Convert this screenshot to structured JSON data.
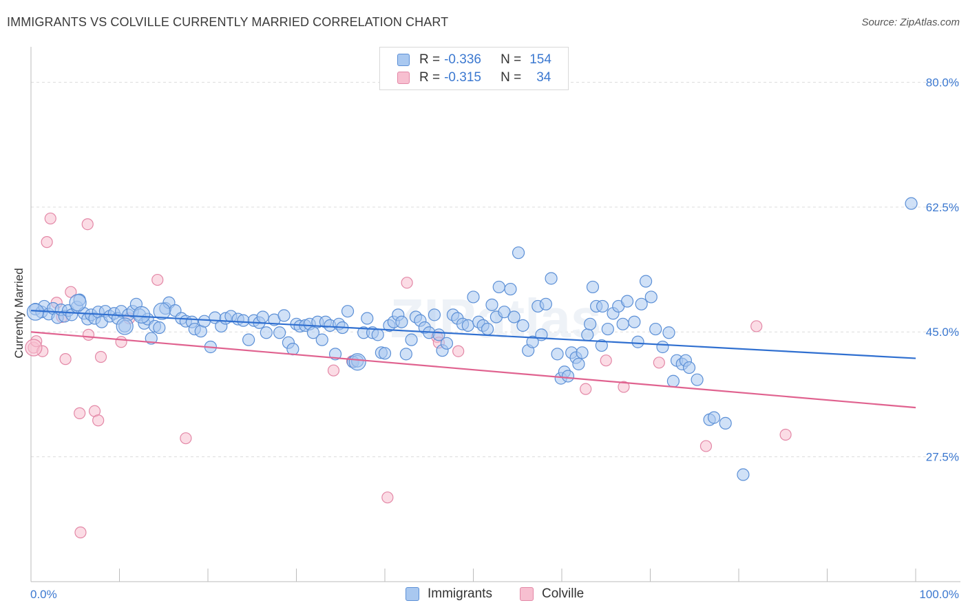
{
  "title": "IMMIGRANTS VS COLVILLE CURRENTLY MARRIED CORRELATION CHART",
  "source": "Source: ZipAtlas.com",
  "watermark": "ZIPatlas",
  "legend_top": {
    "rows": [
      {
        "r_label": "R =",
        "r_value": "-0.336",
        "n_label": "N =",
        "n_value": "154"
      },
      {
        "r_label": "R =",
        "r_value": "-0.315",
        "n_label": "N =",
        "n_value": "34"
      }
    ]
  },
  "legend_bottom": {
    "items": [
      {
        "label": "Immigrants"
      },
      {
        "label": "Colville"
      }
    ]
  },
  "colors": {
    "blue_fill": "#a9c8f0",
    "blue_stroke": "#5b8fd6",
    "blue_line": "#2f6fd0",
    "pink_fill": "#f7bfd0",
    "pink_stroke": "#e387a6",
    "pink_line": "#e0628f",
    "tick_text": "#3b78d0"
  },
  "chart_data": {
    "type": "scatter",
    "ylabel": "Currently Married",
    "xlabel": "",
    "xlim": [
      0,
      100
    ],
    "ylim": [
      10,
      84
    ],
    "x_ticks": [
      "0.0%",
      "100.0%"
    ],
    "y_ticks": [
      {
        "value": 80,
        "label": "80.0%"
      },
      {
        "value": 62.5,
        "label": "62.5%"
      },
      {
        "value": 45,
        "label": "45.0%"
      },
      {
        "value": 27.5,
        "label": "27.5%"
      }
    ],
    "grid": true,
    "series": [
      {
        "name": "Immigrants",
        "trend": {
          "x": [
            0,
            100
          ],
          "y": [
            48.0,
            41.3
          ]
        },
        "points": [
          [
            0.5,
            48.2
          ],
          [
            1.2,
            47.8
          ],
          [
            1.5,
            48.6
          ],
          [
            2.0,
            47.5
          ],
          [
            2.5,
            48.3
          ],
          [
            3.0,
            47.0
          ],
          [
            3.4,
            48.1
          ],
          [
            3.8,
            47.2
          ],
          [
            4.2,
            48.0
          ],
          [
            4.6,
            47.4
          ],
          [
            5.2,
            48.5
          ],
          [
            5.5,
            49.5
          ],
          [
            6.0,
            47.6
          ],
          [
            6.4,
            46.8
          ],
          [
            6.8,
            47.4
          ],
          [
            7.2,
            46.9
          ],
          [
            7.6,
            47.8
          ],
          [
            8.0,
            46.4
          ],
          [
            8.4,
            47.9
          ],
          [
            8.9,
            47.2
          ],
          [
            9.4,
            47.6
          ],
          [
            9.8,
            46.9
          ],
          [
            10.2,
            47.9
          ],
          [
            10.6,
            45.8
          ],
          [
            11.0,
            47.4
          ],
          [
            11.5,
            47.9
          ],
          [
            11.9,
            48.9
          ],
          [
            12.3,
            47.4
          ],
          [
            12.8,
            46.2
          ],
          [
            13.2,
            46.8
          ],
          [
            13.6,
            44.1
          ],
          [
            14.0,
            45.8
          ],
          [
            14.5,
            45.6
          ],
          [
            15.2,
            48.3
          ],
          [
            15.6,
            49.1
          ],
          [
            16.3,
            48.0
          ],
          [
            17.0,
            46.9
          ],
          [
            17.5,
            46.5
          ],
          [
            18.2,
            46.4
          ],
          [
            18.5,
            45.4
          ],
          [
            19.2,
            45.1
          ],
          [
            19.6,
            46.5
          ],
          [
            20.3,
            42.9
          ],
          [
            20.8,
            47.0
          ],
          [
            21.5,
            45.8
          ],
          [
            22.0,
            46.9
          ],
          [
            22.6,
            47.2
          ],
          [
            23.4,
            46.8
          ],
          [
            24.0,
            46.6
          ],
          [
            24.6,
            43.9
          ],
          [
            25.2,
            46.6
          ],
          [
            25.8,
            46.3
          ],
          [
            26.2,
            47.1
          ],
          [
            26.6,
            44.9
          ],
          [
            27.5,
            46.7
          ],
          [
            28.1,
            44.9
          ],
          [
            28.6,
            47.3
          ],
          [
            29.1,
            43.5
          ],
          [
            29.6,
            42.6
          ],
          [
            30.0,
            46.1
          ],
          [
            30.4,
            45.8
          ],
          [
            31.0,
            45.9
          ],
          [
            31.5,
            46.1
          ],
          [
            31.9,
            44.9
          ],
          [
            32.4,
            46.4
          ],
          [
            32.9,
            43.9
          ],
          [
            33.3,
            46.4
          ],
          [
            33.8,
            45.9
          ],
          [
            34.4,
            41.9
          ],
          [
            34.8,
            46.1
          ],
          [
            35.2,
            45.6
          ],
          [
            35.8,
            47.9
          ],
          [
            36.4,
            40.8
          ],
          [
            36.9,
            40.9
          ],
          [
            37.6,
            44.9
          ],
          [
            38.0,
            46.9
          ],
          [
            38.6,
            44.9
          ],
          [
            39.2,
            44.6
          ],
          [
            39.6,
            42.1
          ],
          [
            40.0,
            42.0
          ],
          [
            40.5,
            45.9
          ],
          [
            41.0,
            46.4
          ],
          [
            41.5,
            47.4
          ],
          [
            41.9,
            46.4
          ],
          [
            42.4,
            41.9
          ],
          [
            43.0,
            43.9
          ],
          [
            43.5,
            47.1
          ],
          [
            44.0,
            46.6
          ],
          [
            44.5,
            45.6
          ],
          [
            45.0,
            44.9
          ],
          [
            45.6,
            47.4
          ],
          [
            46.1,
            44.6
          ],
          [
            46.5,
            42.4
          ],
          [
            47.0,
            43.4
          ],
          [
            47.7,
            47.4
          ],
          [
            48.2,
            46.9
          ],
          [
            48.8,
            46.1
          ],
          [
            49.4,
            45.9
          ],
          [
            50.0,
            49.9
          ],
          [
            50.6,
            46.4
          ],
          [
            51.1,
            45.9
          ],
          [
            51.6,
            45.4
          ],
          [
            52.1,
            48.8
          ],
          [
            52.6,
            47.1
          ],
          [
            52.9,
            51.3
          ],
          [
            53.5,
            47.8
          ],
          [
            54.2,
            51.0
          ],
          [
            54.6,
            47.1
          ],
          [
            55.1,
            56.1
          ],
          [
            55.6,
            45.9
          ],
          [
            56.2,
            42.4
          ],
          [
            56.7,
            43.6
          ],
          [
            57.3,
            48.6
          ],
          [
            57.7,
            44.6
          ],
          [
            58.2,
            48.9
          ],
          [
            58.8,
            52.5
          ],
          [
            59.5,
            41.9
          ],
          [
            59.9,
            38.5
          ],
          [
            60.3,
            39.4
          ],
          [
            60.7,
            38.8
          ],
          [
            61.1,
            42.1
          ],
          [
            61.6,
            41.4
          ],
          [
            61.9,
            40.5
          ],
          [
            62.3,
            42.1
          ],
          [
            62.9,
            44.6
          ],
          [
            63.5,
            51.3
          ],
          [
            63.9,
            48.6
          ],
          [
            64.5,
            43.1
          ],
          [
            64.6,
            48.6
          ],
          [
            65.2,
            45.4
          ],
          [
            65.8,
            47.6
          ],
          [
            66.4,
            48.6
          ],
          [
            66.9,
            46.1
          ],
          [
            67.4,
            49.3
          ],
          [
            68.2,
            46.4
          ],
          [
            68.6,
            43.6
          ],
          [
            69.0,
            48.9
          ],
          [
            69.5,
            52.1
          ],
          [
            70.1,
            49.9
          ],
          [
            70.6,
            45.4
          ],
          [
            71.4,
            42.9
          ],
          [
            72.1,
            44.9
          ],
          [
            72.6,
            38.1
          ],
          [
            73.0,
            41.0
          ],
          [
            73.6,
            40.5
          ],
          [
            74.0,
            41.0
          ],
          [
            74.4,
            40.0
          ],
          [
            75.3,
            38.3
          ],
          [
            76.7,
            32.7
          ],
          [
            77.2,
            33.0
          ],
          [
            78.5,
            32.2
          ],
          [
            80.5,
            25.0
          ],
          [
            99.5,
            63.0
          ],
          [
            63.2,
            46.1
          ]
        ],
        "big_points": [
          [
            0.5,
            47.8
          ],
          [
            5.3,
            49.1
          ],
          [
            10.6,
            45.8
          ],
          [
            12.5,
            47.4
          ],
          [
            14.8,
            47.9
          ],
          [
            36.9,
            40.8
          ]
        ]
      },
      {
        "name": "Colville",
        "trend": {
          "x": [
            0,
            100
          ],
          "y": [
            45.0,
            34.4
          ]
        },
        "points": [
          [
            0.3,
            42.8
          ],
          [
            0.6,
            43.7
          ],
          [
            1.3,
            42.3
          ],
          [
            1.8,
            57.6
          ],
          [
            2.2,
            60.9
          ],
          [
            2.9,
            49.1
          ],
          [
            3.5,
            47.1
          ],
          [
            3.9,
            41.2
          ],
          [
            4.5,
            50.6
          ],
          [
            5.5,
            33.6
          ],
          [
            5.6,
            16.9
          ],
          [
            6.4,
            60.1
          ],
          [
            6.5,
            44.6
          ],
          [
            7.2,
            33.9
          ],
          [
            7.6,
            32.6
          ],
          [
            7.9,
            41.5
          ],
          [
            10.2,
            43.6
          ],
          [
            11.1,
            46.9
          ],
          [
            14.3,
            52.3
          ],
          [
            17.5,
            30.1
          ],
          [
            34.2,
            39.6
          ],
          [
            36.3,
            40.9
          ],
          [
            40.3,
            21.8
          ],
          [
            42.5,
            51.9
          ],
          [
            45.9,
            44.3
          ],
          [
            46.1,
            43.5
          ],
          [
            48.3,
            42.3
          ],
          [
            62.7,
            37.0
          ],
          [
            65.0,
            41.0
          ],
          [
            67.0,
            37.3
          ],
          [
            71.0,
            40.7
          ],
          [
            76.3,
            29.0
          ],
          [
            82.0,
            45.8
          ],
          [
            85.3,
            30.6
          ]
        ],
        "big_points": [
          [
            0.3,
            42.8
          ]
        ]
      }
    ]
  }
}
